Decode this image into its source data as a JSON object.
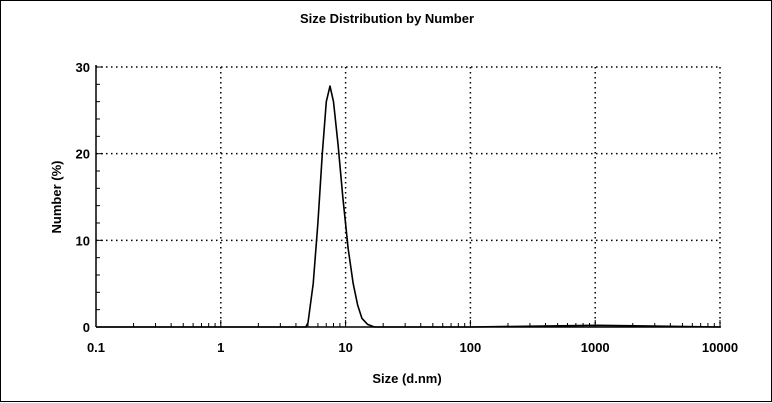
{
  "chart_data": {
    "type": "line",
    "title": "Size Distribution by Number",
    "xlabel": "Size (d.nm)",
    "ylabel": "Number (%)",
    "x_scale": "log",
    "xlim": [
      0.1,
      10000
    ],
    "ylim": [
      0,
      30
    ],
    "x_ticks": [
      "0.1",
      "1",
      "10",
      "100",
      "1000",
      "10000"
    ],
    "y_ticks": [
      "0",
      "10",
      "20",
      "30"
    ],
    "grid": true,
    "series": [
      {
        "x": [
          0.1,
          4.8,
          5.0,
          5.5,
          6.0,
          6.5,
          7.0,
          7.5,
          8.0,
          8.7,
          9.5,
          10.5,
          11.5,
          12.5,
          13.5,
          15.0,
          17.0,
          20.0,
          100,
          1000,
          10000
        ],
        "y": [
          0,
          0,
          0.5,
          5.0,
          12.0,
          20.0,
          26.0,
          27.8,
          26.0,
          21.0,
          15.0,
          9.0,
          5.0,
          2.5,
          1.0,
          0.3,
          0,
          0,
          0,
          0.2,
          0
        ]
      }
    ]
  }
}
